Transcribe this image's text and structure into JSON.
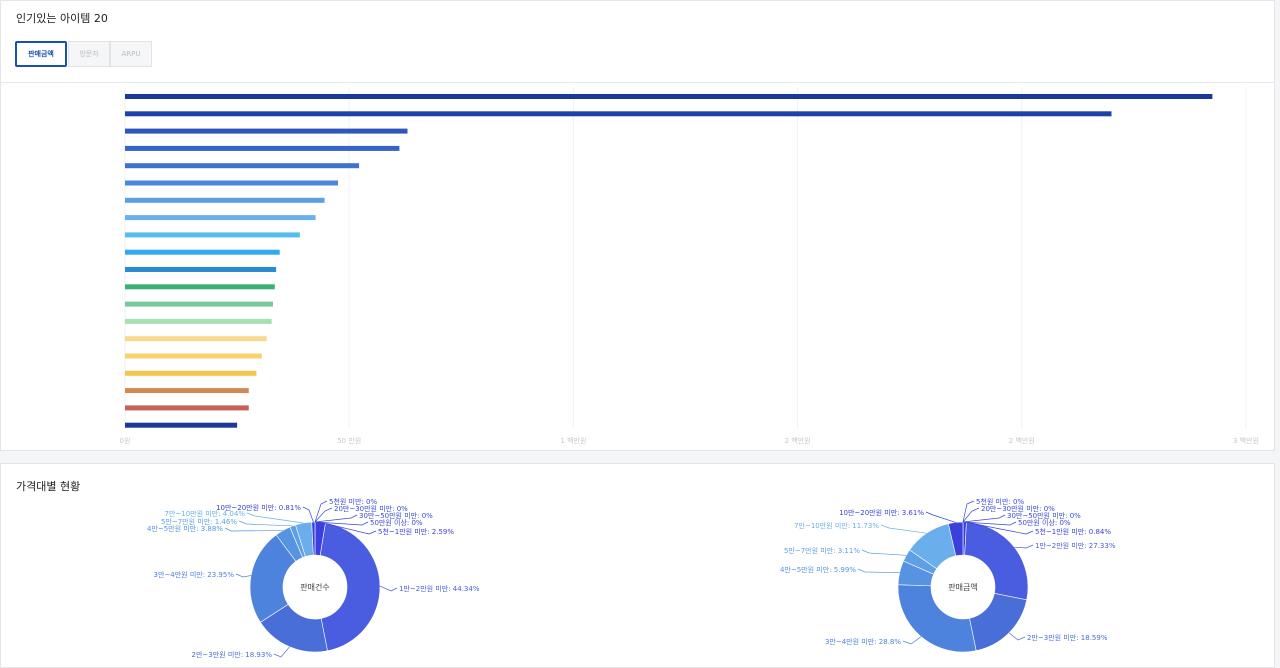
{
  "top_section": {
    "title": "인기있는 아이템 20",
    "tabs": [
      {
        "label": "판매금액",
        "active": true
      },
      {
        "label": "방문자",
        "active": false
      },
      {
        "label": "ARPU",
        "active": false
      }
    ]
  },
  "bottom_section": {
    "title": "가격대별 현황"
  },
  "colors": {
    "accent": "#1c4fb4"
  },
  "chart_data": [
    {
      "type": "bar",
      "orientation": "horizontal",
      "title": "",
      "xlim": [
        0,
        2500000
      ],
      "x_ticks": [
        "0원",
        "50 만원",
        "1 백만원",
        "2 백만원",
        "2 백만원",
        "3 백만원"
      ],
      "x_tick_values": [
        0,
        500000,
        1000000,
        1500000,
        2000000,
        2500000
      ],
      "grid": true,
      "legend": "none",
      "values": [
        2425000,
        2200000,
        630000,
        612000,
        522000,
        475000,
        445000,
        425000,
        390000,
        345000,
        337000,
        334000,
        330000,
        327000,
        316000,
        305000,
        293000,
        276000,
        276000,
        250000
      ],
      "colors": [
        "#1a3a95",
        "#1e43a8",
        "#2e57bd",
        "#3563c6",
        "#3f72cf",
        "#4b88d9",
        "#5c9ee3",
        "#6ab0ec",
        "#52bff0",
        "#33a8ea",
        "#2a8bd2",
        "#3aaf72",
        "#7ac79a",
        "#a6e0b0",
        "#f9d990",
        "#f8d26c",
        "#f6c34e",
        "#cf8954",
        "#c46258",
        "#1a3a95"
      ]
    },
    {
      "type": "pie",
      "center_label": "판매건수",
      "legend": "none",
      "slices": [
        {
          "label": "5천원 미만: 0%",
          "value": 0,
          "color": "#3a49d8"
        },
        {
          "label": "5천~1만원 미만: 2.59%",
          "value": 2.59,
          "color": "#3c3ee0"
        },
        {
          "label": "1만~2만원 미만: 44.34%",
          "value": 44.34,
          "color": "#4a5ce0"
        },
        {
          "label": "2만~3만원 미만: 18.93%",
          "value": 18.93,
          "color": "#4a6ed8"
        },
        {
          "label": "3만~4만원 미만: 23.95%",
          "value": 23.95,
          "color": "#4d82dd"
        },
        {
          "label": "4만~5만원 미만: 3.88%",
          "value": 3.88,
          "color": "#5694e2"
        },
        {
          "label": "5만~7만원 미만: 1.46%",
          "value": 1.46,
          "color": "#5f9fe6"
        },
        {
          "label": "7만~10만원 미만: 4.04%",
          "value": 4.04,
          "color": "#6aafec"
        },
        {
          "label": "10만~20만원 미만: 0.81%",
          "value": 0.81,
          "color": "#3a40da"
        },
        {
          "label": "20만~30만원 미만: 0%",
          "value": 0,
          "color": "#3a49d8"
        },
        {
          "label": "30만~50만원 미만: 0%",
          "value": 0,
          "color": "#3a49d8"
        },
        {
          "label": "50만원 이상: 0%",
          "value": 0,
          "color": "#3a49d8"
        }
      ]
    },
    {
      "type": "pie",
      "center_label": "판매금액",
      "legend": "none",
      "slices": [
        {
          "label": "5천원 미만: 0%",
          "value": 0,
          "color": "#3a49d8"
        },
        {
          "label": "5천~1만원 미만: 0.84%",
          "value": 0.84,
          "color": "#3c3ee0"
        },
        {
          "label": "1만~2만원 미만: 27.33%",
          "value": 27.33,
          "color": "#4a5ce0"
        },
        {
          "label": "2만~3만원 미만: 18.59%",
          "value": 18.59,
          "color": "#4a6ed8"
        },
        {
          "label": "3만~4만원 미만: 28.8%",
          "value": 28.8,
          "color": "#4d82dd"
        },
        {
          "label": "4만~5만원 미만: 5.99%",
          "value": 5.99,
          "color": "#5694e2"
        },
        {
          "label": "5만~7만원 미만: 3.11%",
          "value": 3.11,
          "color": "#5f9fe6"
        },
        {
          "label": "7만~10만원 미만: 11.73%",
          "value": 11.73,
          "color": "#6aafec"
        },
        {
          "label": "10만~20만원 미만: 3.61%",
          "value": 3.61,
          "color": "#3a40da"
        },
        {
          "label": "20만~30만원 미만: 0%",
          "value": 0,
          "color": "#3a49d8"
        },
        {
          "label": "30만~50만원 미만: 0%",
          "value": 0,
          "color": "#3a49d8"
        },
        {
          "label": "50만원 이상: 0%",
          "value": 0,
          "color": "#3a49d8"
        }
      ]
    }
  ]
}
